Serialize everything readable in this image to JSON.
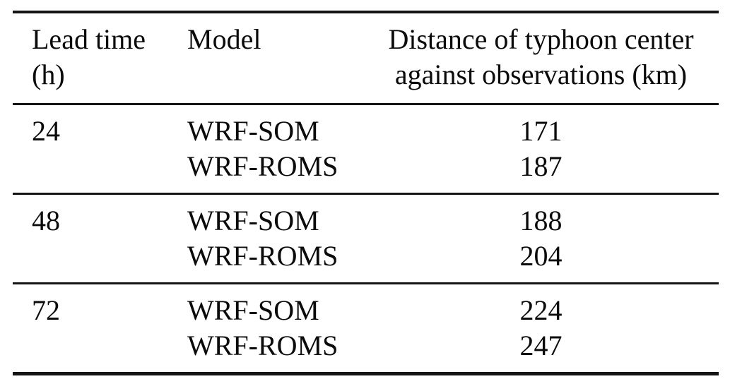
{
  "table": {
    "header": {
      "col1_line1": "Lead time",
      "col1_line2": "(h)",
      "col2": "Model",
      "col3_line1": "Distance of typhoon center",
      "col3_line2": "against observations (km)"
    },
    "groups": [
      {
        "lead_time": "24",
        "rows": [
          {
            "model": "WRF-SOM",
            "distance": "171"
          },
          {
            "model": "WRF-ROMS",
            "distance": "187"
          }
        ]
      },
      {
        "lead_time": "48",
        "rows": [
          {
            "model": "WRF-SOM",
            "distance": "188"
          },
          {
            "model": "WRF-ROMS",
            "distance": "204"
          }
        ]
      },
      {
        "lead_time": "72",
        "rows": [
          {
            "model": "WRF-SOM",
            "distance": "224"
          },
          {
            "model": "WRF-ROMS",
            "distance": "247"
          }
        ]
      }
    ]
  },
  "chart_data": {
    "type": "table",
    "columns": [
      "Lead time (h)",
      "Model",
      "Distance of typhoon center against observations (km)"
    ],
    "rows": [
      [
        "24",
        "WRF-SOM",
        171
      ],
      [
        "24",
        "WRF-ROMS",
        187
      ],
      [
        "48",
        "WRF-SOM",
        188
      ],
      [
        "48",
        "WRF-ROMS",
        204
      ],
      [
        "72",
        "WRF-SOM",
        224
      ],
      [
        "72",
        "WRF-ROMS",
        247
      ]
    ]
  },
  "colors": {
    "background": "#ffffff",
    "text": "#0b0b0b",
    "rule": "#141414"
  }
}
